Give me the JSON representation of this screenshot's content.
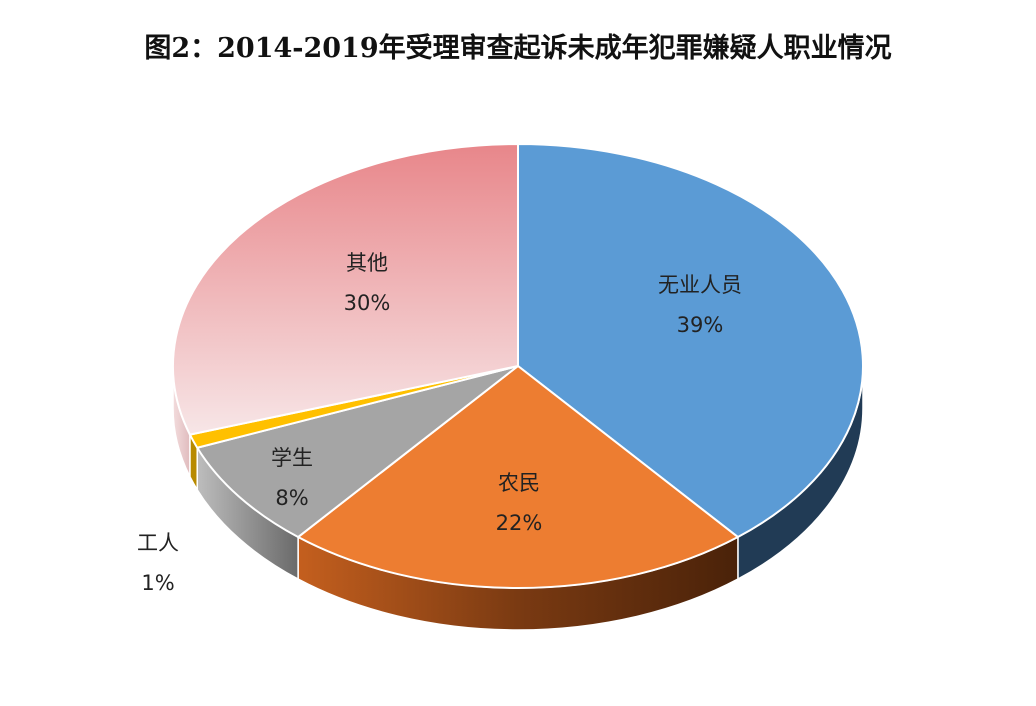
{
  "chart_data": {
    "type": "pie",
    "title": "图2：2014-2019年受理审查起诉未成年犯罪嫌疑人职业情况",
    "slices": [
      {
        "label": "无业人员",
        "value": 39,
        "value_label": "39%",
        "color": "#5b9bd5",
        "side_color": "#213b55"
      },
      {
        "label": "农民",
        "value": 22,
        "value_label": "22%",
        "color": "#ed7d31",
        "side_color": "#7a3a12"
      },
      {
        "label": "学生",
        "value": 8,
        "value_label": "8%",
        "color": "#a5a5a5",
        "side_color": "#6a6a6a"
      },
      {
        "label": "工人",
        "value": 1,
        "value_label": "1%",
        "color": "#ffc000",
        "side_color": "#b88a00"
      },
      {
        "label": "其他",
        "value": 30,
        "value_label": "30%",
        "color": "#e8868a",
        "side_color": "#d9b0b3"
      }
    ],
    "legend": "none",
    "data_labels": "category and percentage"
  }
}
